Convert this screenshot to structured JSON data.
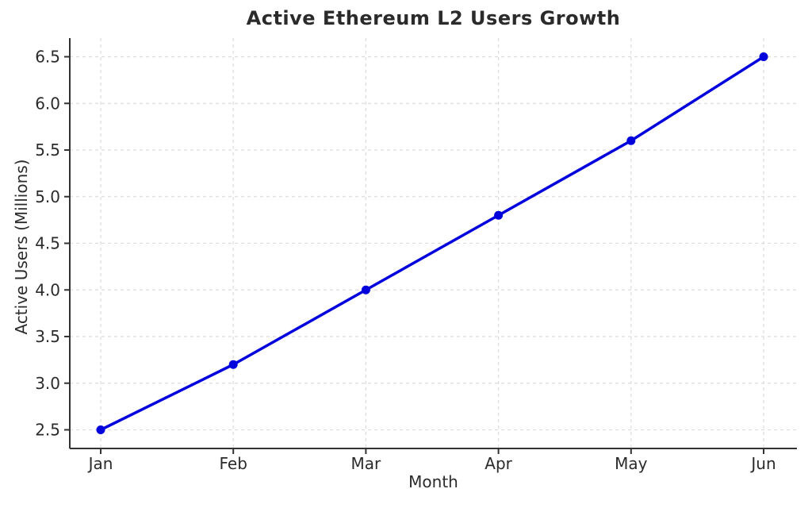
{
  "chart_data": {
    "type": "line",
    "title": "Active Ethereum L2 Users Growth",
    "xlabel": "Month",
    "ylabel": "Active Users (Millions)",
    "categories": [
      "Jan",
      "Feb",
      "Mar",
      "Apr",
      "May",
      "Jun"
    ],
    "series": [
      {
        "name": "Active Users",
        "values": [
          2.5,
          3.2,
          4.0,
          4.8,
          5.6,
          6.5
        ]
      }
    ],
    "yticks": [
      2.5,
      3.0,
      3.5,
      4.0,
      4.5,
      5.0,
      5.5,
      6.0,
      6.5
    ],
    "ylim": [
      2.3,
      6.7
    ],
    "grid": true,
    "grid_style": "dashed",
    "legend": "none",
    "marker": "circle",
    "colors": {
      "line": "#0000DD",
      "marker": "#0000DD",
      "grid": "#dcdcdc",
      "axis": "#333333",
      "text": "#2b2b2b",
      "background": "#ffffff"
    }
  }
}
